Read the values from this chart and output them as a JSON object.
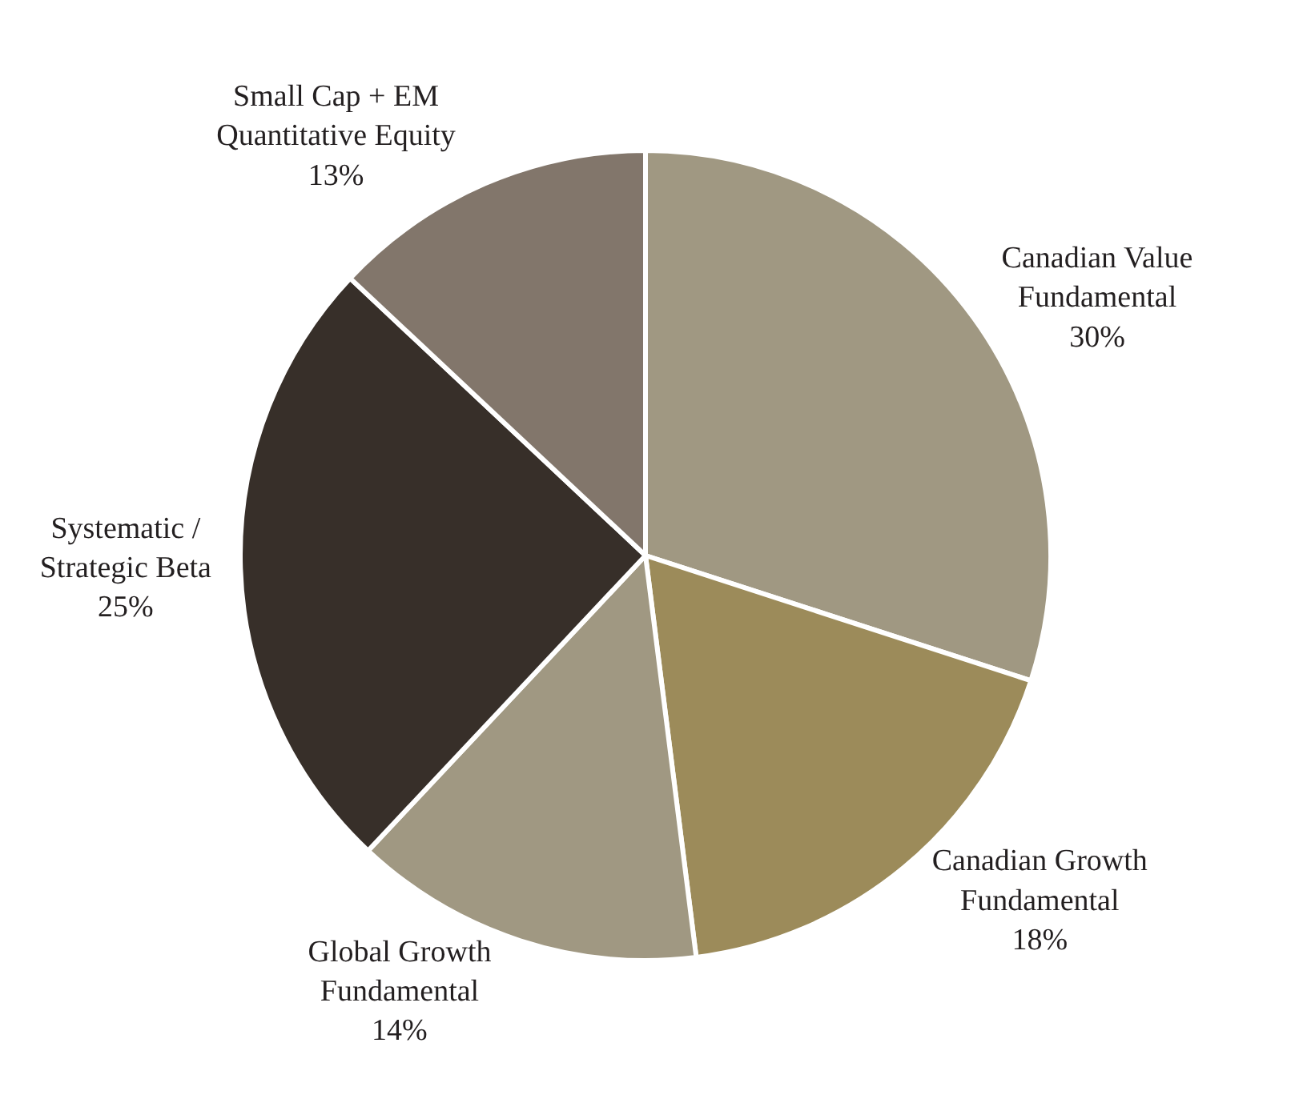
{
  "chart_data": {
    "type": "pie",
    "categories": [
      "Canadian Value\nFundamental",
      "Canadian Growth\nFundamental",
      "Global Growth\nFundamental",
      "Systematic /\nStrategic Beta",
      "Small Cap + EM\nQuantitative Equity"
    ],
    "values": [
      30,
      18,
      14,
      25,
      13
    ],
    "value_labels": [
      "30%",
      "18%",
      "14%",
      "25%",
      "13%"
    ],
    "colors": [
      "#a09882",
      "#9c8b5a",
      "#a09882",
      "#372f29",
      "#82766b"
    ],
    "legend": false
  }
}
